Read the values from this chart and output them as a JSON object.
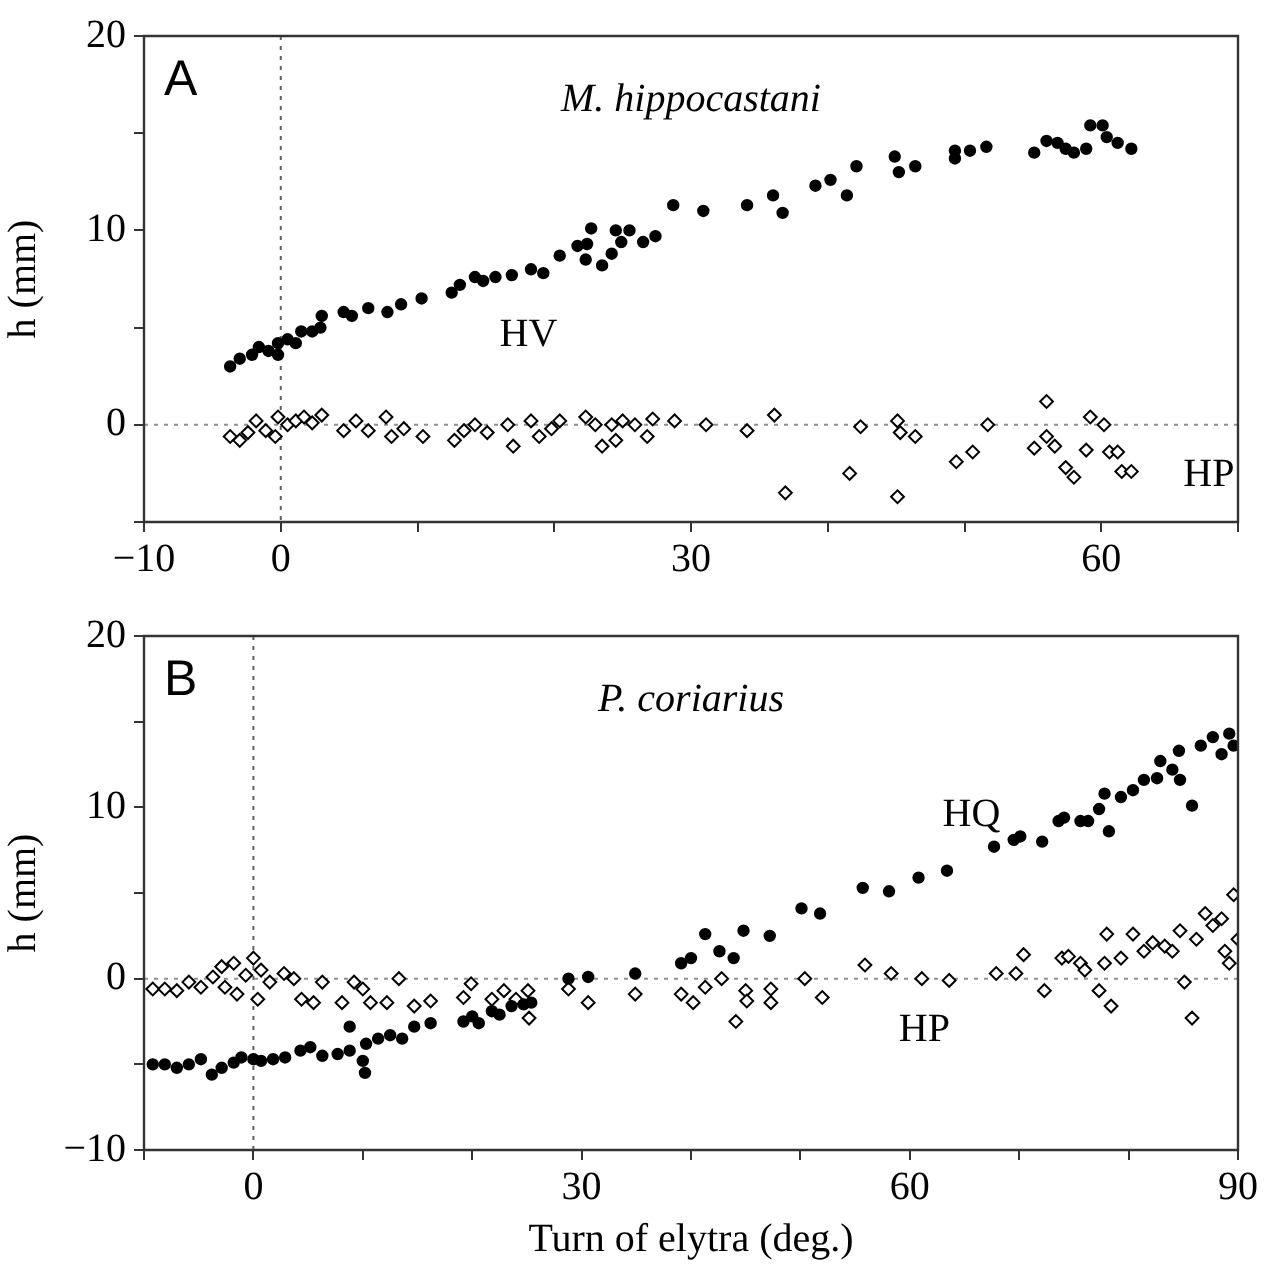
{
  "chart_data": [
    {
      "type": "scatter",
      "title": "M. hippocastani",
      "ylabel": "h (mm)",
      "annotations": [
        "A"
      ],
      "xlim": [
        -10,
        70
      ],
      "xticks": [
        {
          "value": -10,
          "label": "−10"
        },
        0,
        {
          "value": 10,
          "label": null
        },
        {
          "value": 20,
          "label": null
        },
        30,
        {
          "value": 40,
          "label": null
        },
        {
          "value": 50,
          "label": null
        },
        60,
        {
          "value": 70,
          "label": null
        }
      ],
      "ylim": [
        -5,
        20
      ],
      "yticks": [
        {
          "value": -5,
          "label": null
        },
        0,
        {
          "value": 5,
          "label": null
        },
        10,
        {
          "value": 15,
          "label": null
        },
        20
      ],
      "grid": false,
      "legend": false,
      "ref_lines": [
        {
          "axis": "x",
          "value": 0,
          "color": "#606060",
          "line_style": "dotted"
        },
        {
          "axis": "y",
          "value": 0,
          "color": "#909090",
          "line_style": "dotted"
        }
      ],
      "series": [
        {
          "name": "HV",
          "color": "#000000",
          "marker": "circle",
          "x": [
            -3.7,
            -3.0,
            -2.1,
            -1.6,
            -0.9,
            -0.2,
            -0.2,
            0.5,
            1.1,
            1.5,
            2.3,
            2.9,
            3.0,
            4.6,
            5.2,
            6.4,
            7.8,
            8.8,
            10.3,
            12.5,
            13.1,
            14.2,
            14.8,
            15.7,
            16.9,
            18.3,
            19.2,
            20.4,
            21.7,
            22.4,
            22.7,
            22.3,
            23.5,
            24.2,
            24.5,
            24.9,
            25.5,
            26.5,
            27.4,
            28.7,
            30.9,
            34.1,
            36.0,
            36.7,
            39.1,
            40.2,
            41.4,
            42.1,
            44.9,
            45.2,
            46.4,
            49.3,
            49.3,
            50.4,
            51.6,
            55.1,
            56.0,
            56.8,
            57.4,
            58.0,
            58.9,
            59.2,
            60.1,
            60.4,
            61.2,
            62.2
          ],
          "values": [
            3.0,
            3.4,
            3.6,
            4.0,
            3.8,
            3.6,
            4.2,
            4.4,
            4.2,
            4.8,
            4.8,
            5.0,
            5.6,
            5.8,
            5.6,
            6.0,
            5.8,
            6.2,
            6.5,
            6.8,
            7.2,
            7.6,
            7.4,
            7.6,
            7.7,
            8.0,
            7.8,
            8.7,
            9.2,
            9.3,
            10.1,
            8.5,
            8.2,
            8.8,
            10.0,
            9.4,
            10.0,
            9.4,
            9.7,
            11.3,
            11.0,
            11.3,
            11.8,
            10.9,
            12.3,
            12.6,
            11.8,
            13.3,
            13.8,
            13.0,
            13.3,
            14.1,
            13.7,
            14.1,
            14.3,
            14.0,
            14.6,
            14.5,
            14.2,
            14.0,
            14.2,
            15.4,
            15.4,
            14.8,
            14.5,
            14.2
          ]
        },
        {
          "name": "HP",
          "color": "#000000",
          "marker": "diamond",
          "x": [
            -3.7,
            -3.0,
            -2.4,
            -1.8,
            -1.1,
            -0.4,
            -0.2,
            0.5,
            1.1,
            1.7,
            2.3,
            3.0,
            4.6,
            5.5,
            6.4,
            7.7,
            8.1,
            9.0,
            10.4,
            12.7,
            13.4,
            14.2,
            15.1,
            16.6,
            17.0,
            18.3,
            18.9,
            19.8,
            20.4,
            22.3,
            23.0,
            23.5,
            24.2,
            24.5,
            25.0,
            25.9,
            26.8,
            27.2,
            28.8,
            31.1,
            34.1,
            36.1,
            36.9,
            41.6,
            42.4,
            45.1,
            45.3,
            46.4,
            45.1,
            49.4,
            50.6,
            51.7,
            55.1,
            56.0,
            56.0,
            56.6,
            57.4,
            58.0,
            58.9,
            59.2,
            60.2,
            60.6,
            61.2,
            61.5,
            62.2
          ],
          "values": [
            -0.6,
            -0.8,
            -0.4,
            0.2,
            -0.3,
            -0.6,
            0.4,
            0.0,
            0.2,
            0.4,
            0.1,
            0.5,
            -0.3,
            0.2,
            -0.3,
            0.4,
            -0.6,
            -0.2,
            -0.6,
            -0.8,
            -0.3,
            0.0,
            -0.4,
            0.0,
            -1.1,
            0.2,
            -0.6,
            -0.2,
            0.2,
            0.4,
            0.0,
            -1.1,
            0.0,
            -0.8,
            0.2,
            0.0,
            -0.6,
            0.3,
            0.2,
            0.0,
            -0.3,
            0.5,
            -3.5,
            -2.5,
            -0.1,
            0.2,
            -0.4,
            -0.6,
            -3.7,
            -1.9,
            -1.4,
            0.0,
            -1.2,
            1.2,
            -0.6,
            -1.1,
            -2.2,
            -2.7,
            -1.3,
            0.4,
            0.0,
            -1.4,
            -1.4,
            -2.4,
            -2.4
          ]
        }
      ]
    },
    {
      "type": "scatter",
      "title": "P. coriarius",
      "xlabel": "Turn of elytra (deg.)",
      "ylabel": "h (mm)",
      "annotations": [
        "B"
      ],
      "xlim": [
        -10,
        90
      ],
      "xticks": [
        {
          "value": -10,
          "label": null
        },
        0,
        {
          "value": 10,
          "label": null
        },
        {
          "value": 20,
          "label": null
        },
        30,
        {
          "value": 40,
          "label": null
        },
        {
          "value": 50,
          "label": null
        },
        60,
        {
          "value": 70,
          "label": null
        },
        {
          "value": 80,
          "label": null
        },
        90
      ],
      "ylim": [
        -10,
        20
      ],
      "yticks": [
        {
          "value": -10,
          "label": "−10"
        },
        {
          "value": -5,
          "label": null
        },
        0,
        {
          "value": 5,
          "label": null
        },
        10,
        {
          "value": 15,
          "label": null
        },
        20
      ],
      "grid": false,
      "legend": false,
      "ref_lines": [
        {
          "axis": "x",
          "value": 0,
          "color": "#606060",
          "line_style": "dotted"
        },
        {
          "axis": "y",
          "value": 0,
          "color": "#909090",
          "line_style": "dotted"
        }
      ],
      "series": [
        {
          "name": "HQ",
          "color": "#000000",
          "marker": "circle",
          "x": [
            -9.2,
            -8.1,
            -7.0,
            -5.9,
            -4.8,
            -3.8,
            -2.9,
            -1.8,
            -1.1,
            0,
            0.7,
            1.8,
            2.9,
            4.3,
            5.2,
            6.3,
            7.7,
            8.8,
            8.8,
            10.0,
            10.2,
            10.3,
            11.4,
            12.5,
            13.6,
            14.7,
            16.2,
            19.2,
            20.0,
            20.6,
            21.8,
            22.5,
            23.6,
            24.7,
            25.4,
            28.8,
            30.6,
            34.9,
            39.1,
            40.0,
            41.3,
            42.6,
            43.9,
            44.8,
            47.2,
            50.1,
            51.8,
            55.7,
            58.1,
            60.8,
            63.4,
            67.7,
            69.5,
            70.1,
            72.1,
            73.6,
            74.1,
            75.6,
            76.3,
            77.3,
            77.8,
            78.2,
            79.3,
            80.4,
            81.4,
            82.6,
            82.9,
            84.0,
            84.6,
            84.7,
            85.8,
            86.6,
            87.7,
            88.5,
            89.2,
            89.6
          ],
          "values": [
            -5.0,
            -5.0,
            -5.2,
            -5.0,
            -4.7,
            -5.6,
            -5.2,
            -4.9,
            -4.6,
            -4.7,
            -4.8,
            -4.7,
            -4.6,
            -4.2,
            -4.0,
            -4.5,
            -4.4,
            -2.8,
            -4.2,
            -4.8,
            -5.5,
            -3.8,
            -3.5,
            -3.3,
            -3.5,
            -2.8,
            -2.6,
            -2.5,
            -2.2,
            -2.6,
            -1.9,
            -2.1,
            -1.6,
            -1.5,
            -1.4,
            0.0,
            0.1,
            0.3,
            0.9,
            1.2,
            2.6,
            1.6,
            1.2,
            2.8,
            2.5,
            4.1,
            3.8,
            5.3,
            5.1,
            5.9,
            6.3,
            7.7,
            8.1,
            8.3,
            8.0,
            9.2,
            9.4,
            9.2,
            9.2,
            9.9,
            10.8,
            8.6,
            10.6,
            11.0,
            11.6,
            11.7,
            12.7,
            12.2,
            13.3,
            11.6,
            10.1,
            13.6,
            14.1,
            13.1,
            14.3,
            13.6
          ]
        },
        {
          "name": "HP",
          "color": "#000000",
          "marker": "diamond",
          "x": [
            -9.2,
            -8.1,
            -7.0,
            -5.9,
            -4.8,
            -3.7,
            -2.9,
            -2.6,
            -1.8,
            -1.5,
            -0.7,
            0,
            0.4,
            0.7,
            1.5,
            2.8,
            3.7,
            4.4,
            5.5,
            6.3,
            8.1,
            9.2,
            10.0,
            10.7,
            12.2,
            13.3,
            14.7,
            16.2,
            19.2,
            19.9,
            21.8,
            22.9,
            24.0,
            25.1,
            25.2,
            28.8,
            30.6,
            34.9,
            39.1,
            40.2,
            41.3,
            42.8,
            44.1,
            45.0,
            45.1,
            47.3,
            47.3,
            50.4,
            52.0,
            55.9,
            58.3,
            61.1,
            63.6,
            67.9,
            69.7,
            70.4,
            72.3,
            73.9,
            74.5,
            75.6,
            76.0,
            77.3,
            77.8,
            78.0,
            78.4,
            79.3,
            80.4,
            81.4,
            82.2,
            83.3,
            84.0,
            84.7,
            85.1,
            85.8,
            86.2,
            87.0,
            87.7,
            88.5,
            88.8,
            89.6,
            90.0,
            89.2
          ],
          "values": [
            -0.6,
            -0.6,
            -0.7,
            -0.2,
            -0.5,
            0.1,
            0.7,
            -0.5,
            0.9,
            -0.9,
            0.2,
            1.2,
            -1.2,
            0.5,
            -0.2,
            0.3,
            0.0,
            -1.2,
            -1.4,
            -0.2,
            -1.4,
            -0.2,
            -0.6,
            -1.4,
            -1.4,
            0.0,
            -1.6,
            -1.3,
            -1.1,
            -0.3,
            -1.2,
            -0.7,
            -1.2,
            -0.7,
            -2.3,
            -0.6,
            -1.4,
            -0.9,
            -0.9,
            -1.4,
            -0.5,
            0.0,
            -2.5,
            -0.7,
            -1.3,
            -0.6,
            -1.4,
            0.0,
            -1.1,
            0.8,
            0.3,
            0.0,
            -0.1,
            0.3,
            0.3,
            1.4,
            -0.7,
            1.2,
            1.3,
            0.9,
            0.5,
            -0.7,
            0.9,
            2.6,
            -1.6,
            1.2,
            2.6,
            1.6,
            2.1,
            1.9,
            1.6,
            2.8,
            -0.2,
            -2.3,
            2.3,
            3.8,
            3.1,
            3.5,
            1.6,
            4.9,
            2.3,
            0.9
          ]
        }
      ]
    }
  ]
}
